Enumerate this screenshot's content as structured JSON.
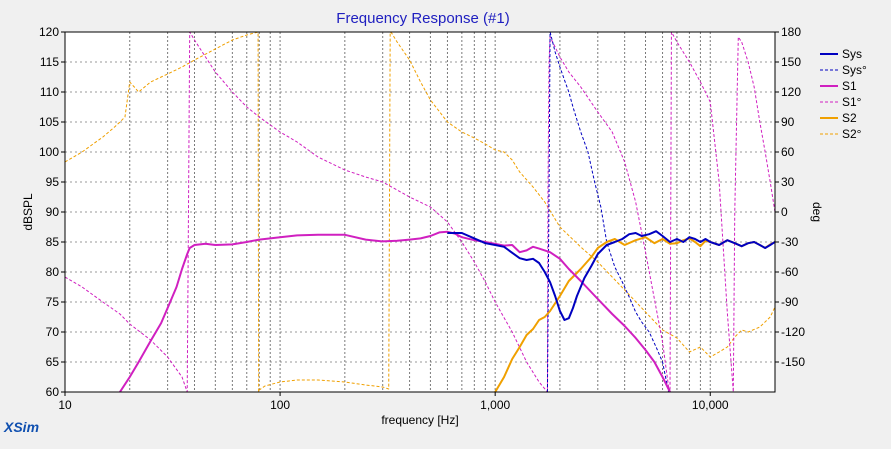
{
  "app_label": "XSim",
  "chart_data": {
    "type": "line",
    "title": "Frequency Response (#1)",
    "xlabel": "frequency [Hz]",
    "ylabel": "dBSPL",
    "y2label": "deg",
    "x_scale": "log",
    "xlim": [
      10,
      20000
    ],
    "ylim": [
      60,
      120
    ],
    "y2lim": [
      -180,
      180
    ],
    "x_ticks": [
      10,
      100,
      1000,
      10000
    ],
    "x_tick_labels": [
      "10",
      "100",
      "1,000",
      "10,000"
    ],
    "y_ticks": [
      60,
      65,
      70,
      75,
      80,
      85,
      90,
      95,
      100,
      105,
      110,
      115,
      120
    ],
    "y2_ticks": [
      -150,
      -120,
      -90,
      -60,
      -30,
      0,
      30,
      60,
      90,
      120,
      150,
      180
    ],
    "grid": true,
    "legend_position": "right",
    "colors": {
      "sys": "#0000c0",
      "s1": "#d020c0",
      "s2": "#f0a000",
      "title": "#2020c0",
      "xsim": "#1050b0"
    },
    "series": [
      {
        "name": "Sys",
        "axis": "spl",
        "style": "solid",
        "color": "#0000c0",
        "x": [
          600,
          700,
          800,
          900,
          1000,
          1100,
          1200,
          1300,
          1400,
          1500,
          1600,
          1700,
          1800,
          1900,
          2000,
          2100,
          2200,
          2300,
          2400,
          2600,
          2800,
          3000,
          3300,
          3600,
          3900,
          4200,
          4500,
          4800,
          5200,
          5600,
          6000,
          6500,
          7000,
          7500,
          8000,
          8500,
          9000,
          9500,
          10000,
          11000,
          12000,
          13000,
          14000,
          15000,
          16000,
          17000,
          18000,
          19000,
          20000
        ],
        "y": [
          86.5,
          86.5,
          85.6,
          84.8,
          84.5,
          84.2,
          83.2,
          82.3,
          82.0,
          82.2,
          81.5,
          80.0,
          78.3,
          76.0,
          73.5,
          72.0,
          72.3,
          74.0,
          76.0,
          79.0,
          81.0,
          83.0,
          84.5,
          85.0,
          85.5,
          86.3,
          86.5,
          86.0,
          86.3,
          86.8,
          86.0,
          85.0,
          85.5,
          85.0,
          85.8,
          85.5,
          85.0,
          85.5,
          85.0,
          84.5,
          85.3,
          84.8,
          84.3,
          84.8,
          85.0,
          84.5,
          84.0,
          84.5,
          85.0
        ]
      },
      {
        "name": "Sys°",
        "axis": "phase",
        "style": "dashed",
        "color": "#0000c0",
        "x": [
          1750,
          1780,
          1800,
          1850,
          1900,
          2000,
          2100,
          2200,
          2300,
          2500,
          2700,
          2900,
          3100,
          3300,
          3600,
          3900,
          4200,
          4500,
          4800,
          5200,
          5600,
          6000,
          6400
        ],
        "y": [
          -180,
          20,
          180,
          170,
          160,
          145,
          132,
          120,
          105,
          80,
          60,
          30,
          5,
          -30,
          -55,
          -70,
          -85,
          -100,
          -110,
          -120,
          -135,
          -150,
          -180
        ]
      },
      {
        "name": "S1",
        "axis": "spl",
        "style": "solid",
        "color": "#d020c0",
        "x": [
          18,
          20,
          22,
          25,
          28,
          30,
          33,
          35,
          37,
          38,
          40,
          45,
          50,
          60,
          70,
          80,
          100,
          120,
          150,
          200,
          250,
          300,
          350,
          400,
          450,
          500,
          550,
          600,
          650,
          700,
          800,
          900,
          1000,
          1100,
          1200,
          1300,
          1400,
          1500,
          1600,
          1700,
          1800,
          2000,
          2200,
          2500,
          3000,
          3500,
          4000,
          4500,
          5000,
          5500,
          6000,
          6500
        ],
        "y": [
          60,
          62.5,
          65,
          68.5,
          71.5,
          74,
          77.5,
          80.5,
          83,
          84.0,
          84.5,
          84.7,
          84.5,
          84.6,
          85.0,
          85.4,
          85.8,
          86.1,
          86.2,
          86.2,
          85.4,
          85.1,
          85.2,
          85.4,
          85.6,
          86.0,
          86.6,
          86.7,
          86.4,
          85.8,
          85.3,
          85.0,
          84.7,
          84.4,
          84.5,
          83.3,
          83.6,
          84.2,
          83.9,
          83.6,
          83.3,
          82.2,
          80.5,
          78.5,
          75.5,
          73.0,
          71.0,
          69.0,
          67.0,
          65.0,
          62.5,
          60.0
        ]
      },
      {
        "name": "S1°",
        "axis": "phase",
        "style": "dashed",
        "color": "#d020c0",
        "x": [
          10,
          12,
          15,
          18,
          20,
          25,
          30,
          35,
          37,
          37.5,
          38,
          40,
          45,
          50,
          60,
          70,
          80,
          100,
          120,
          150,
          200,
          250,
          300,
          350,
          400,
          500,
          600,
          700,
          800,
          900,
          1000,
          1200,
          1400,
          1600,
          1750,
          1760,
          1780,
          1800,
          1900,
          2000,
          2200,
          2500,
          3000,
          3500,
          4000,
          4500,
          5000,
          6000,
          6400,
          6500,
          6600,
          6800,
          7000,
          8000,
          9000,
          10000,
          11000,
          12000,
          12800,
          13000,
          13500,
          14000,
          15000,
          16000,
          17000,
          18000,
          19000,
          20000
        ],
        "y": [
          -65,
          -75,
          -90,
          -102,
          -112,
          -128,
          -145,
          -165,
          -180,
          0,
          180,
          172,
          155,
          140,
          120,
          105,
          95,
          80,
          70,
          55,
          42,
          35,
          30,
          22,
          15,
          5,
          -10,
          -30,
          -50,
          -70,
          -90,
          -120,
          -150,
          -170,
          -180,
          20,
          150,
          175,
          165,
          155,
          140,
          125,
          100,
          80,
          50,
          10,
          -40,
          -130,
          -175,
          -180,
          180,
          175,
          170,
          150,
          130,
          110,
          30,
          -100,
          -180,
          0,
          175,
          170,
          150,
          125,
          90,
          60,
          30,
          0
        ]
      },
      {
        "name": "S2",
        "axis": "spl",
        "style": "solid",
        "color": "#f0a000",
        "x": [
          1000,
          1100,
          1200,
          1300,
          1400,
          1500,
          1600,
          1700,
          1800,
          2000,
          2200,
          2500,
          2800,
          3000,
          3300,
          3600,
          4000,
          4500,
          5000,
          5500,
          6000,
          6500,
          7000,
          7500,
          8000,
          8500,
          9000,
          9500,
          10000,
          11000,
          12000,
          13000,
          14000,
          15000,
          16000,
          17000,
          18000,
          19000,
          20000
        ],
        "y": [
          60,
          62.5,
          65.5,
          67.5,
          69.5,
          70.5,
          72.0,
          72.5,
          73.5,
          76.0,
          78.5,
          80.5,
          82.5,
          84.0,
          85.0,
          85.5,
          84.5,
          85.3,
          85.8,
          84.8,
          85.5,
          84.7,
          84.8,
          85.3,
          85.6,
          85.0,
          84.3,
          85.2,
          85.0,
          84.5,
          85.3,
          84.8,
          84.3,
          84.8,
          85.0,
          84.5,
          84.0,
          84.6,
          85.0
        ]
      },
      {
        "name": "S2°",
        "axis": "phase",
        "style": "dashed",
        "color": "#f0a000",
        "x": [
          10,
          12,
          15,
          17,
          18,
          19,
          20,
          21,
          22,
          25,
          28,
          30,
          35,
          40,
          50,
          60,
          70,
          79,
          79.5,
          80,
          85,
          100,
          120,
          150,
          200,
          250,
          300,
          320,
          325,
          330,
          350,
          400,
          450,
          500,
          600,
          700,
          800,
          900,
          1000,
          1100,
          1200,
          1300,
          1500,
          1700,
          2000,
          2500,
          3000,
          4000,
          5000,
          6000,
          7000,
          8000,
          9000,
          10000,
          11000,
          12000,
          13000,
          14000,
          15000,
          17000,
          19000,
          20000
        ],
        "y": [
          50,
          60,
          75,
          85,
          90,
          95,
          130,
          125,
          120,
          130,
          135,
          138,
          145,
          152,
          163,
          172,
          177,
          180,
          -180,
          -178,
          -174,
          -170,
          -168,
          -168,
          -170,
          -173,
          -175,
          -177,
          180,
          179,
          170,
          152,
          130,
          112,
          90,
          80,
          74,
          68,
          62,
          60,
          52,
          40,
          25,
          10,
          -15,
          -35,
          -50,
          -78,
          -100,
          -118,
          -126,
          -140,
          -135,
          -145,
          -140,
          -135,
          -125,
          -118,
          -120,
          -115,
          -105,
          -95
        ]
      }
    ]
  }
}
